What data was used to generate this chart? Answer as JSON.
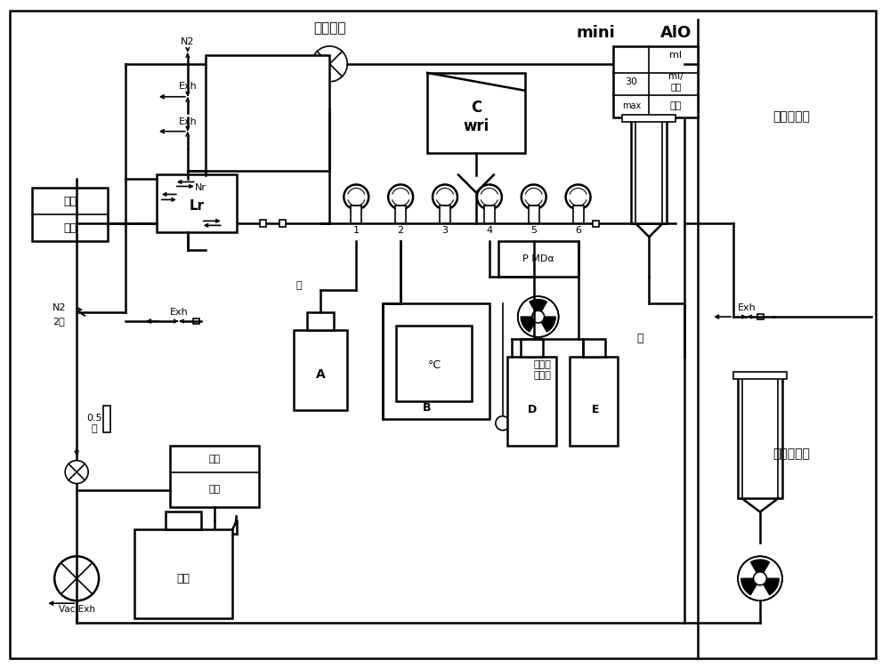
{
  "bg_color": "#ffffff",
  "line_color": "#000000",
  "fig_width": 10.0,
  "fig_height": 7.52,
  "dpi": 100,
  "labels": {
    "chuanru_huodong": "传入活动",
    "mini": "mini",
    "AIO": "AlO",
    "lu_yang": "镥氧奥曲肽",
    "lu_yang_bot": "镥氧奥曲肽",
    "N2_top": "N2",
    "N2_2ba": "N2\n2巴",
    "Exh1": "Exh",
    "Exh2": "Exh",
    "Exh3": "Exh",
    "Exh_right": "Exh",
    "Nr": "Nr",
    "Lr": "Lr",
    "A": "A",
    "B": "B",
    "C": "C\nwri",
    "P_MDa": "P MDα",
    "fanying": "反应器\n缓冲液",
    "D": "D",
    "E": "E",
    "tai": "肽",
    "zhenkong": "真空",
    "haobar": "毫巴",
    "feiwu": "废物",
    "yali": "压力",
    "yali_hb": "毫巴",
    "ml": "ml",
    "ml_hb": "ml/\n毫巴",
    "v30": "30",
    "vmax": "max",
    "0_5ba": "0.5\n巴",
    "Vac_Exh": "Vac Exh",
    "jiao": "搶"
  }
}
